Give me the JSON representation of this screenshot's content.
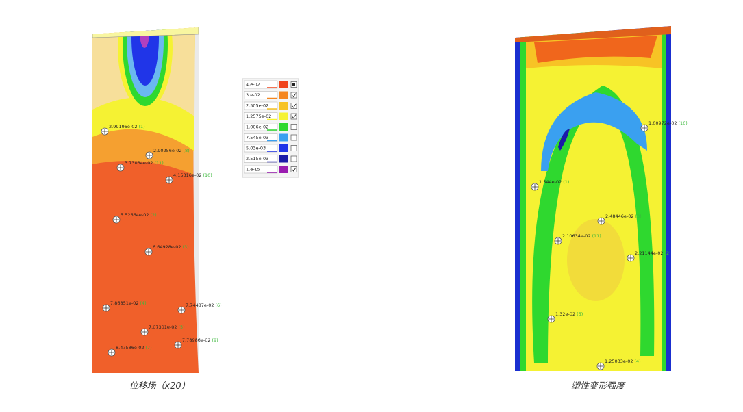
{
  "legend": {
    "entries": [
      {
        "label": "4.e-02",
        "color": "#f0441c",
        "checkbox": "filled"
      },
      {
        "label": "3.e-02",
        "color": "#f5861f",
        "checkbox": "checked"
      },
      {
        "label": "2.505e-02",
        "color": "#f7c325",
        "checkbox": "checked"
      },
      {
        "label": "1.2575e-02",
        "color": "#f5f233",
        "checkbox": "checked"
      },
      {
        "label": "1.006e-02",
        "color": "#2fd82f",
        "checkbox": "empty"
      },
      {
        "label": "7.545e-03",
        "color": "#3aa0f0",
        "checkbox": "empty"
      },
      {
        "label": "5.03e-03",
        "color": "#2035e8",
        "checkbox": "empty"
      },
      {
        "label": "2.515e-03",
        "color": "#1a1aa8",
        "checkbox": "empty"
      },
      {
        "label": "1.e-15",
        "color": "#9a1cb0",
        "checkbox": "checked"
      }
    ]
  },
  "left_panel": {
    "caption": "位移场（x20）",
    "probes": [
      {
        "value": "2.99196e-02",
        "id": "(1)"
      },
      {
        "value": "2.90256e-02",
        "id": "(8)"
      },
      {
        "value": "3.73034e-02",
        "id": "(11)"
      },
      {
        "value": "4.15316e-02",
        "id": "(10)"
      },
      {
        "value": "5.52664e-02",
        "id": "(2)"
      },
      {
        "value": "6.64928e-02",
        "id": "(3)"
      },
      {
        "value": "7.86851e-02",
        "id": "(4)"
      },
      {
        "value": "7.74487e-02",
        "id": "(6)"
      },
      {
        "value": "7.07301e-02",
        "id": "(5)"
      },
      {
        "value": "7.78986e-02",
        "id": "(9)"
      },
      {
        "value": "8.47586e-02",
        "id": "(7)"
      }
    ]
  },
  "right_panel": {
    "caption": "塑性变形强度",
    "probes": [
      {
        "value": "1.00972e-02",
        "id": "(16)"
      },
      {
        "value": "1.544e-02",
        "id": "(1)"
      },
      {
        "value": "2.48446e-02",
        "id": "(3)"
      },
      {
        "value": "2.10634e-02",
        "id": "(11)"
      },
      {
        "value": "2.21144e-02",
        "id": "(2)"
      },
      {
        "value": "1.32e-02",
        "id": "(5)"
      },
      {
        "value": "1.25033e-02",
        "id": "(4)"
      }
    ]
  }
}
